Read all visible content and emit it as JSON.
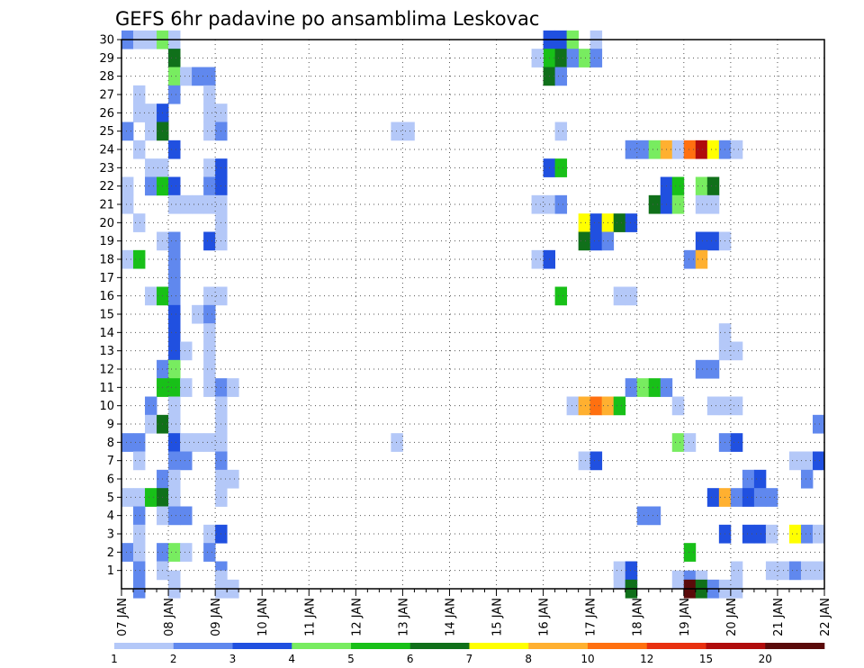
{
  "chart_data": {
    "type": "heatmap",
    "title": "GEFS 6hr padavine po ansamblima Leskovac",
    "xlabel": "",
    "ylabel": "",
    "x_tick_labels": [
      "07 JAN",
      "08 JAN",
      "09 JAN",
      "10 JAN",
      "11 JAN",
      "12 JAN",
      "13 JAN",
      "14 JAN",
      "15 JAN",
      "16 JAN",
      "17 JAN",
      "18 JAN",
      "19 JAN",
      "20 JAN",
      "21 JAN",
      "22 JAN"
    ],
    "x_range_days": [
      7,
      22
    ],
    "y_tick_labels": [
      "1",
      "2",
      "3",
      "4",
      "5",
      "6",
      "7",
      "8",
      "9",
      "10",
      "11",
      "12",
      "13",
      "14",
      "15",
      "16",
      "17",
      "18",
      "19",
      "20",
      "21",
      "22",
      "23",
      "24",
      "25",
      "26",
      "27",
      "28",
      "29",
      "30"
    ],
    "y_range": [
      0,
      30
    ],
    "grid": "dotted",
    "colorbar": {
      "position": "bottom",
      "labels": [
        "1",
        "2",
        "3",
        "4",
        "5",
        "6",
        "7",
        "8",
        "10",
        "12",
        "15",
        "20"
      ],
      "colors": [
        "#b4c8f8",
        "#6088ee",
        "#2050e0",
        "#78ec60",
        "#18c018",
        "#10701a",
        "#ffff00",
        "#ffb030",
        "#ff7010",
        "#e83010",
        "#b00c0c",
        "#5a0a0a"
      ]
    },
    "cells_note": "each cell: [day-of-January at left edge of 6-hour step, member, color class 1-12]",
    "cells": [
      [
        7.0,
        30,
        2
      ],
      [
        7.25,
        30,
        1
      ],
      [
        7.5,
        30,
        1
      ],
      [
        7.75,
        30,
        4
      ],
      [
        8.0,
        30,
        1
      ],
      [
        8.0,
        29,
        3
      ],
      [
        8.0,
        29,
        6
      ],
      [
        8.0,
        28,
        4
      ],
      [
        8.25,
        28,
        1
      ],
      [
        8.5,
        28,
        2
      ],
      [
        8.75,
        28,
        2
      ],
      [
        7.25,
        27,
        1
      ],
      [
        8.0,
        27,
        2
      ],
      [
        8.75,
        27,
        1
      ],
      [
        7.25,
        26,
        1
      ],
      [
        7.5,
        26,
        1
      ],
      [
        7.75,
        26,
        3
      ],
      [
        8.75,
        26,
        1
      ],
      [
        9.0,
        26,
        1
      ],
      [
        7.0,
        25,
        2
      ],
      [
        7.5,
        25,
        1
      ],
      [
        7.75,
        25,
        6
      ],
      [
        8.75,
        25,
        1
      ],
      [
        9.0,
        25,
        2
      ],
      [
        7.25,
        24,
        1
      ],
      [
        8.0,
        24,
        3
      ],
      [
        7.5,
        23,
        1
      ],
      [
        7.75,
        23,
        1
      ],
      [
        8.75,
        23,
        1
      ],
      [
        9.0,
        23,
        3
      ],
      [
        7.0,
        22,
        1
      ],
      [
        7.5,
        22,
        2
      ],
      [
        7.75,
        22,
        5
      ],
      [
        8.0,
        22,
        3
      ],
      [
        8.75,
        22,
        2
      ],
      [
        9.0,
        22,
        3
      ],
      [
        7.0,
        21,
        1
      ],
      [
        8.0,
        21,
        1
      ],
      [
        8.25,
        21,
        1
      ],
      [
        8.5,
        21,
        1
      ],
      [
        8.75,
        21,
        1
      ],
      [
        9.0,
        21,
        1
      ],
      [
        7.25,
        20,
        1
      ],
      [
        9.0,
        20,
        1
      ],
      [
        7.75,
        19,
        1
      ],
      [
        8.0,
        19,
        2
      ],
      [
        8.75,
        19,
        3
      ],
      [
        9.0,
        19,
        1
      ],
      [
        7.0,
        18,
        1
      ],
      [
        7.25,
        18,
        5
      ],
      [
        8.0,
        18,
        2
      ],
      [
        8.0,
        17,
        2
      ],
      [
        7.5,
        16,
        1
      ],
      [
        7.75,
        16,
        5
      ],
      [
        8.0,
        16,
        2
      ],
      [
        8.75,
        16,
        1
      ],
      [
        9.0,
        16,
        1
      ],
      [
        8.0,
        15,
        3
      ],
      [
        8.5,
        15,
        1
      ],
      [
        8.75,
        15,
        2
      ],
      [
        8.0,
        14,
        3
      ],
      [
        8.75,
        14,
        1
      ],
      [
        8.0,
        13,
        3
      ],
      [
        8.25,
        13,
        1
      ],
      [
        8.75,
        13,
        1
      ],
      [
        7.75,
        12,
        2
      ],
      [
        8.0,
        12,
        4
      ],
      [
        8.75,
        12,
        1
      ],
      [
        7.75,
        11,
        5
      ],
      [
        8.0,
        11,
        5
      ],
      [
        8.25,
        11,
        1
      ],
      [
        8.75,
        11,
        1
      ],
      [
        9.0,
        11,
        2
      ],
      [
        9.25,
        11,
        1
      ],
      [
        7.5,
        10,
        2
      ],
      [
        8.0,
        10,
        1
      ],
      [
        9.0,
        10,
        1
      ],
      [
        7.5,
        9,
        1
      ],
      [
        7.75,
        9,
        6
      ],
      [
        8.0,
        9,
        1
      ],
      [
        9.0,
        9,
        1
      ],
      [
        7.0,
        8,
        2
      ],
      [
        7.25,
        8,
        2
      ],
      [
        8.0,
        8,
        3
      ],
      [
        8.25,
        8,
        1
      ],
      [
        8.5,
        8,
        1
      ],
      [
        8.75,
        8,
        1
      ],
      [
        9.0,
        8,
        1
      ],
      [
        7.25,
        7,
        1
      ],
      [
        8.0,
        7,
        2
      ],
      [
        8.25,
        7,
        2
      ],
      [
        9.0,
        7,
        2
      ],
      [
        7.75,
        6,
        2
      ],
      [
        8.0,
        6,
        1
      ],
      [
        9.0,
        6,
        1
      ],
      [
        9.25,
        6,
        1
      ],
      [
        7.0,
        5,
        1
      ],
      [
        7.25,
        5,
        1
      ],
      [
        7.5,
        5,
        5
      ],
      [
        7.75,
        5,
        6
      ],
      [
        8.0,
        5,
        1
      ],
      [
        9.0,
        5,
        1
      ],
      [
        7.25,
        4,
        2
      ],
      [
        7.75,
        4,
        1
      ],
      [
        8.0,
        4,
        2
      ],
      [
        8.25,
        4,
        2
      ],
      [
        7.25,
        3,
        1
      ],
      [
        8.75,
        3,
        1
      ],
      [
        9.0,
        3,
        3
      ],
      [
        7.0,
        2,
        2
      ],
      [
        7.25,
        2,
        1
      ],
      [
        7.75,
        2,
        2
      ],
      [
        8.0,
        2,
        4
      ],
      [
        8.25,
        2,
        1
      ],
      [
        8.75,
        2,
        2
      ],
      [
        7.25,
        1,
        2
      ],
      [
        7.75,
        1,
        1
      ],
      [
        9.0,
        1,
        2
      ],
      [
        8.0,
        0.5,
        1
      ],
      [
        9.0,
        0.5,
        1
      ],
      [
        7.25,
        0,
        2
      ],
      [
        8.0,
        0,
        1
      ],
      [
        9.0,
        0,
        1
      ],
      [
        9.25,
        0,
        1
      ],
      [
        12.75,
        25,
        1
      ],
      [
        13.0,
        25,
        1
      ],
      [
        12.75,
        8,
        1
      ],
      [
        16.0,
        30,
        3
      ],
      [
        16.25,
        30,
        3
      ],
      [
        16.5,
        30,
        4
      ],
      [
        17.0,
        30,
        1
      ],
      [
        16.75,
        29,
        4
      ],
      [
        16.0,
        29,
        5
      ],
      [
        16.25,
        29,
        6
      ],
      [
        16.5,
        29,
        2
      ],
      [
        17.0,
        29,
        2
      ],
      [
        15.75,
        29,
        1
      ],
      [
        16.0,
        28,
        6
      ],
      [
        16.25,
        28,
        2
      ],
      [
        16.25,
        25,
        1
      ],
      [
        17.75,
        24,
        2
      ],
      [
        18.0,
        24,
        2
      ],
      [
        18.25,
        24,
        4
      ],
      [
        18.5,
        24,
        8
      ],
      [
        18.75,
        24,
        1
      ],
      [
        19.0,
        24,
        9
      ],
      [
        19.25,
        24,
        11
      ],
      [
        19.5,
        24,
        7
      ],
      [
        19.75,
        24,
        2
      ],
      [
        20.0,
        24,
        1
      ],
      [
        16.0,
        23,
        3
      ],
      [
        16.25,
        23,
        5
      ],
      [
        18.5,
        22,
        3
      ],
      [
        18.75,
        22,
        5
      ],
      [
        19.25,
        22,
        4
      ],
      [
        19.5,
        22,
        6
      ],
      [
        15.75,
        21,
        1
      ],
      [
        16.0,
        21,
        1
      ],
      [
        16.25,
        21,
        2
      ],
      [
        18.25,
        21,
        6
      ],
      [
        18.5,
        21,
        3
      ],
      [
        18.75,
        21,
        4
      ],
      [
        19.25,
        21,
        1
      ],
      [
        19.5,
        21,
        1
      ],
      [
        16.75,
        20,
        7
      ],
      [
        17.0,
        20,
        3
      ],
      [
        17.25,
        20,
        7
      ],
      [
        17.5,
        20,
        6
      ],
      [
        17.75,
        20,
        3
      ],
      [
        16.75,
        19,
        6
      ],
      [
        17.0,
        19,
        3
      ],
      [
        17.25,
        19,
        2
      ],
      [
        19.25,
        19,
        3
      ],
      [
        19.5,
        19,
        3
      ],
      [
        19.75,
        19,
        1
      ],
      [
        15.75,
        18,
        1
      ],
      [
        16.0,
        18,
        3
      ],
      [
        19.0,
        18,
        2
      ],
      [
        19.25,
        18,
        8
      ],
      [
        16.25,
        16,
        5
      ],
      [
        17.5,
        16,
        1
      ],
      [
        17.75,
        16,
        1
      ],
      [
        19.75,
        14,
        1
      ],
      [
        19.75,
        13,
        1
      ],
      [
        20.0,
        13,
        1
      ],
      [
        19.25,
        12,
        2
      ],
      [
        19.5,
        12,
        2
      ],
      [
        17.75,
        11,
        2
      ],
      [
        18.0,
        11,
        4
      ],
      [
        18.25,
        11,
        5
      ],
      [
        18.5,
        11,
        2
      ],
      [
        16.5,
        10,
        1
      ],
      [
        16.75,
        10,
        8
      ],
      [
        17.0,
        10,
        9
      ],
      [
        17.25,
        10,
        8
      ],
      [
        17.5,
        10,
        5
      ],
      [
        18.75,
        10,
        1
      ],
      [
        19.5,
        10,
        1
      ],
      [
        19.75,
        10,
        1
      ],
      [
        20.0,
        10,
        1
      ],
      [
        21.75,
        9,
        2
      ],
      [
        18.75,
        8,
        4
      ],
      [
        19.0,
        8,
        1
      ],
      [
        19.75,
        8,
        2
      ],
      [
        20.0,
        8,
        3
      ],
      [
        16.75,
        7,
        1
      ],
      [
        17.0,
        7,
        3
      ],
      [
        21.25,
        7,
        1
      ],
      [
        21.5,
        7,
        1
      ],
      [
        21.75,
        7,
        3
      ],
      [
        20.25,
        6,
        2
      ],
      [
        20.5,
        6,
        3
      ],
      [
        21.5,
        6,
        2
      ],
      [
        19.5,
        5,
        3
      ],
      [
        19.75,
        5,
        8
      ],
      [
        20.0,
        5,
        2
      ],
      [
        20.25,
        5,
        3
      ],
      [
        20.5,
        5,
        2
      ],
      [
        20.75,
        5,
        2
      ],
      [
        18.0,
        4,
        2
      ],
      [
        18.25,
        4,
        2
      ],
      [
        19.75,
        3,
        3
      ],
      [
        20.25,
        3,
        3
      ],
      [
        20.5,
        3,
        3
      ],
      [
        20.75,
        3,
        1
      ],
      [
        21.25,
        3,
        7
      ],
      [
        21.5,
        3,
        2
      ],
      [
        21.75,
        3,
        1
      ],
      [
        19.0,
        2,
        5
      ],
      [
        17.5,
        1,
        1
      ],
      [
        17.75,
        1,
        3
      ],
      [
        20.0,
        1,
        1
      ],
      [
        20.75,
        1,
        1
      ],
      [
        21.0,
        1,
        1
      ],
      [
        21.25,
        1,
        2
      ],
      [
        21.5,
        1,
        1
      ],
      [
        21.75,
        1,
        1
      ],
      [
        17.5,
        0.5,
        1
      ],
      [
        17.75,
        0.5,
        3
      ],
      [
        18.75,
        0.5,
        1
      ],
      [
        19.0,
        0.5,
        2
      ],
      [
        19.25,
        0.5,
        1
      ],
      [
        17.75,
        0,
        6
      ],
      [
        19.0,
        0,
        12
      ],
      [
        19.25,
        0,
        6
      ],
      [
        19.5,
        0,
        2
      ],
      [
        19.75,
        0,
        1
      ],
      [
        20.0,
        0,
        1
      ]
    ]
  }
}
